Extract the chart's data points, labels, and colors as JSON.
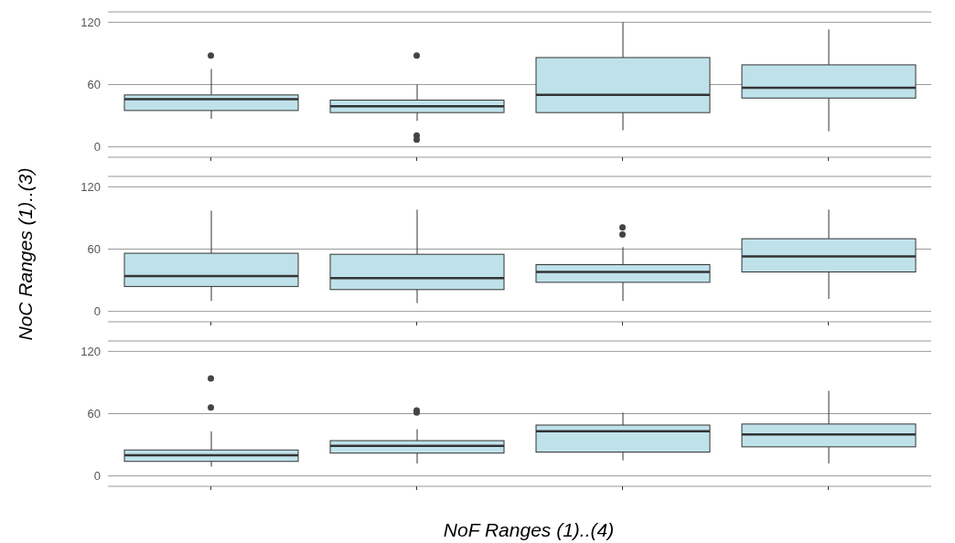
{
  "chart_data": [
    {
      "type": "box",
      "categories": [
        null,
        null,
        null,
        null
      ],
      "color": "#bfe2ea",
      "ylim": [
        -10,
        130
      ],
      "yticks": [
        0,
        60,
        120
      ],
      "grid": "y",
      "tick_labels": "y",
      "boxes": [
        {
          "low": 27,
          "q1": 35,
          "median": 46,
          "q3": 50,
          "high": 75,
          "outliers": [
            88
          ]
        },
        {
          "low": 25,
          "q1": 33,
          "median": 39,
          "q3": 45,
          "high": 60,
          "outliers": [
            88,
            11,
            7
          ]
        },
        {
          "low": 16,
          "q1": 33,
          "median": 50,
          "q3": 86,
          "high": 120
        },
        {
          "low": 15,
          "q1": 47,
          "median": 57,
          "q3": 79,
          "high": 113
        }
      ]
    },
    {
      "type": "box",
      "categories": [
        null,
        null,
        null,
        null
      ],
      "color": "#bfe2ea",
      "ylim": [
        -10,
        130
      ],
      "yticks": [
        0,
        60,
        120
      ],
      "grid": "y",
      "tick_labels": "y",
      "ylabel": "NoC Ranges (1)..(3)",
      "boxes": [
        {
          "low": 10,
          "q1": 24,
          "median": 34,
          "q3": 56,
          "high": 97
        },
        {
          "low": 8,
          "q1": 21,
          "median": 32,
          "q3": 55,
          "high": 98
        },
        {
          "low": 10,
          "q1": 28,
          "median": 38,
          "q3": 45,
          "high": 62,
          "outliers": [
            81,
            74
          ]
        },
        {
          "low": 12,
          "q1": 38,
          "median": 53,
          "q3": 70,
          "high": 98
        }
      ]
    },
    {
      "type": "box",
      "categories": [
        null,
        null,
        null,
        null
      ],
      "color": "#bfe2ea",
      "ylim": [
        -10,
        130
      ],
      "yticks": [
        0,
        60,
        120
      ],
      "grid": "y",
      "tick_labels": "y",
      "xlabel": "NoF Ranges (1)..(4)",
      "boxes": [
        {
          "low": 9,
          "q1": 14,
          "median": 20,
          "q3": 25,
          "high": 43,
          "outliers": [
            94,
            66
          ]
        },
        {
          "low": 12,
          "q1": 22,
          "median": 29,
          "q3": 34,
          "high": 45,
          "outliers": [
            63,
            61
          ]
        },
        {
          "low": 15,
          "q1": 23,
          "median": 43,
          "q3": 49,
          "high": 61
        },
        {
          "low": 12,
          "q1": 28,
          "median": 40,
          "q3": 50,
          "high": 82
        }
      ]
    }
  ]
}
